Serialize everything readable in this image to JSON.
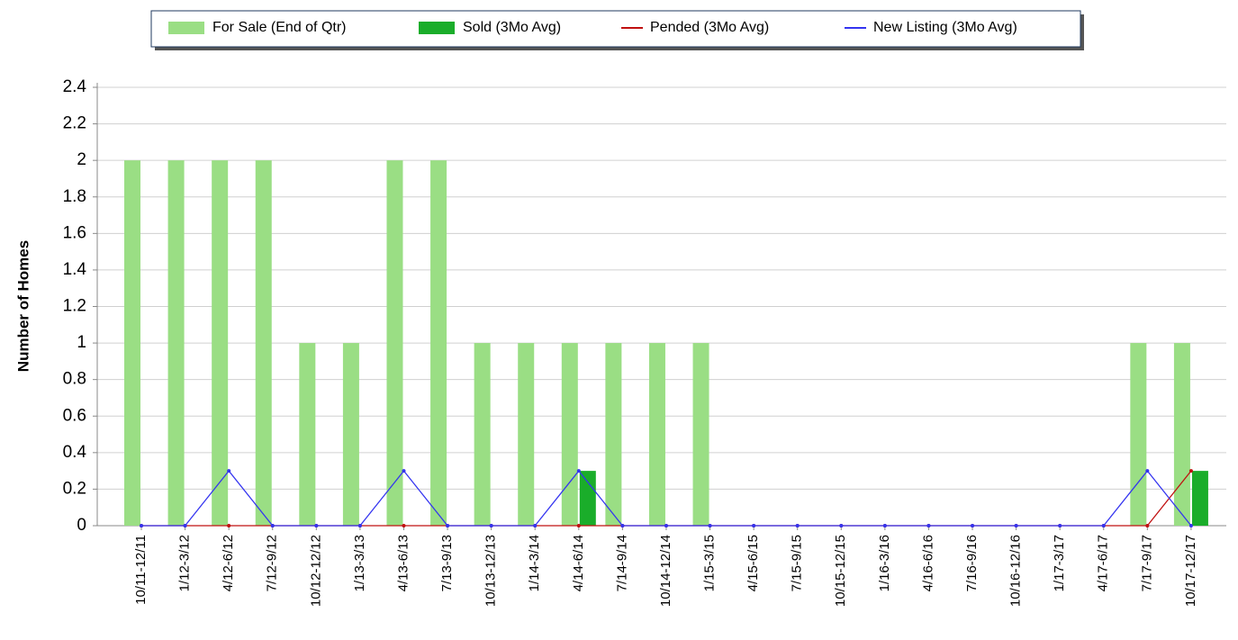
{
  "chart_data": {
    "type": "bar-line",
    "y_label": "Number of Homes",
    "categories": [
      "10/11-12/11",
      "1/12-3/12",
      "4/12-6/12",
      "7/12-9/12",
      "10/12-12/12",
      "1/13-3/13",
      "4/13-6/13",
      "7/13-9/13",
      "10/13-12/13",
      "1/14-3/14",
      "4/14-6/14",
      "7/14-9/14",
      "10/14-12/14",
      "1/15-3/15",
      "4/15-6/15",
      "7/15-9/15",
      "10/15-12/15",
      "1/16-3/16",
      "4/16-6/16",
      "7/16-9/16",
      "10/16-12/16",
      "1/17-3/17",
      "4/17-6/17",
      "7/17-9/17",
      "10/17-12/17"
    ],
    "series": [
      {
        "name": "For Sale (End of Qtr)",
        "kind": "bar",
        "color": "#9ade84",
        "values": [
          2,
          2,
          2,
          2,
          1,
          1,
          2,
          2,
          1,
          1,
          1,
          1,
          1,
          1,
          0,
          0,
          0,
          0,
          0,
          0,
          0,
          0,
          0,
          1,
          1
        ]
      },
      {
        "name": "Sold (3Mo Avg)",
        "kind": "bar",
        "color": "#1aad2a",
        "values": [
          0,
          0,
          0,
          0,
          0,
          0,
          0,
          0,
          0,
          0,
          0.3,
          0,
          0,
          0,
          0,
          0,
          0,
          0,
          0,
          0,
          0,
          0,
          0,
          0,
          0.3
        ]
      },
      {
        "name": "Pended (3Mo Avg)",
        "kind": "line",
        "color": "#c01010",
        "values": [
          0,
          0,
          0,
          0,
          0,
          0,
          0,
          0,
          0,
          0,
          0,
          0,
          0,
          0,
          0,
          0,
          0,
          0,
          0,
          0,
          0,
          0,
          0,
          0,
          0.3
        ]
      },
      {
        "name": "New Listing (3Mo Avg)",
        "kind": "line",
        "color": "#3434f0",
        "values": [
          0,
          0,
          0.3,
          0,
          0,
          0,
          0.3,
          0,
          0,
          0,
          0.3,
          0,
          0,
          0,
          0,
          0,
          0,
          0,
          0,
          0,
          0,
          0,
          0,
          0.3,
          0
        ]
      }
    ],
    "ylim": [
      0,
      2.4
    ],
    "yticks": [
      0,
      0.2,
      0.4,
      0.6,
      0.8,
      1,
      1.2,
      1.4,
      1.6,
      1.8,
      2,
      2.2,
      2.4
    ],
    "grid": true
  }
}
